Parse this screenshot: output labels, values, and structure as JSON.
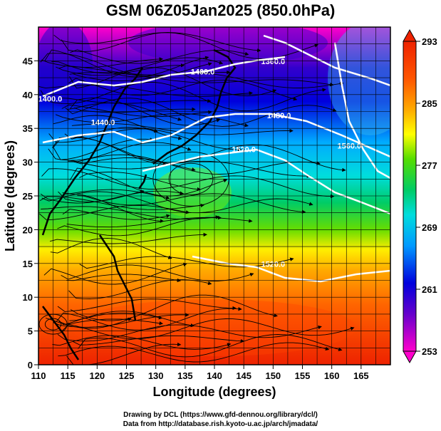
{
  "title": "GSM 06Z05Jan2025 (850.0hPa)",
  "map": {
    "type": "heatmap",
    "field": "temperature",
    "xlabel": "Longitude (degrees)",
    "ylabel": "Latitude  (degrees)",
    "xlim": [
      110,
      170
    ],
    "ylim": [
      0,
      50
    ],
    "x_ticks": [
      110,
      115,
      120,
      125,
      130,
      135,
      140,
      145,
      150,
      155,
      160,
      165
    ],
    "y_ticks": [
      0,
      5,
      10,
      15,
      20,
      25,
      30,
      35,
      40,
      45
    ],
    "grid": true,
    "colorbar": {
      "placement": "right",
      "range": [
        253,
        293
      ],
      "ticks": [
        253,
        261,
        269,
        277,
        285,
        293
      ],
      "colors": [
        "#ff00cc",
        "#6600cc",
        "#0000dd",
        "#0099ff",
        "#00dddd",
        "#00cc66",
        "#55dd00",
        "#ffff00",
        "#ffaa00",
        "#ff5500",
        "#ee2200"
      ]
    },
    "contours": [
      {
        "label": "1360.0",
        "lon": 150,
        "lat": 44.5
      },
      {
        "label": "1400.0",
        "lon": 138,
        "lat": 43
      },
      {
        "label": "1400.0",
        "lon": 112,
        "lat": 39
      },
      {
        "label": "1440.0",
        "lon": 121,
        "lat": 35.5
      },
      {
        "label": "1480.0",
        "lon": 151,
        "lat": 36.5
      },
      {
        "label": "1520.0",
        "lon": 145,
        "lat": 31.5
      },
      {
        "label": "1560.0",
        "lon": 163,
        "lat": 32
      },
      {
        "label": "1520.0",
        "lon": 150,
        "lat": 14.5
      }
    ]
  },
  "credits": {
    "line1": "Drawing by DCL (https://www.gfd-dennou.org/library/dcl/)",
    "line2": "Data from http://database.rish.kyoto-u.ac.jp/arch/jmadata/"
  }
}
